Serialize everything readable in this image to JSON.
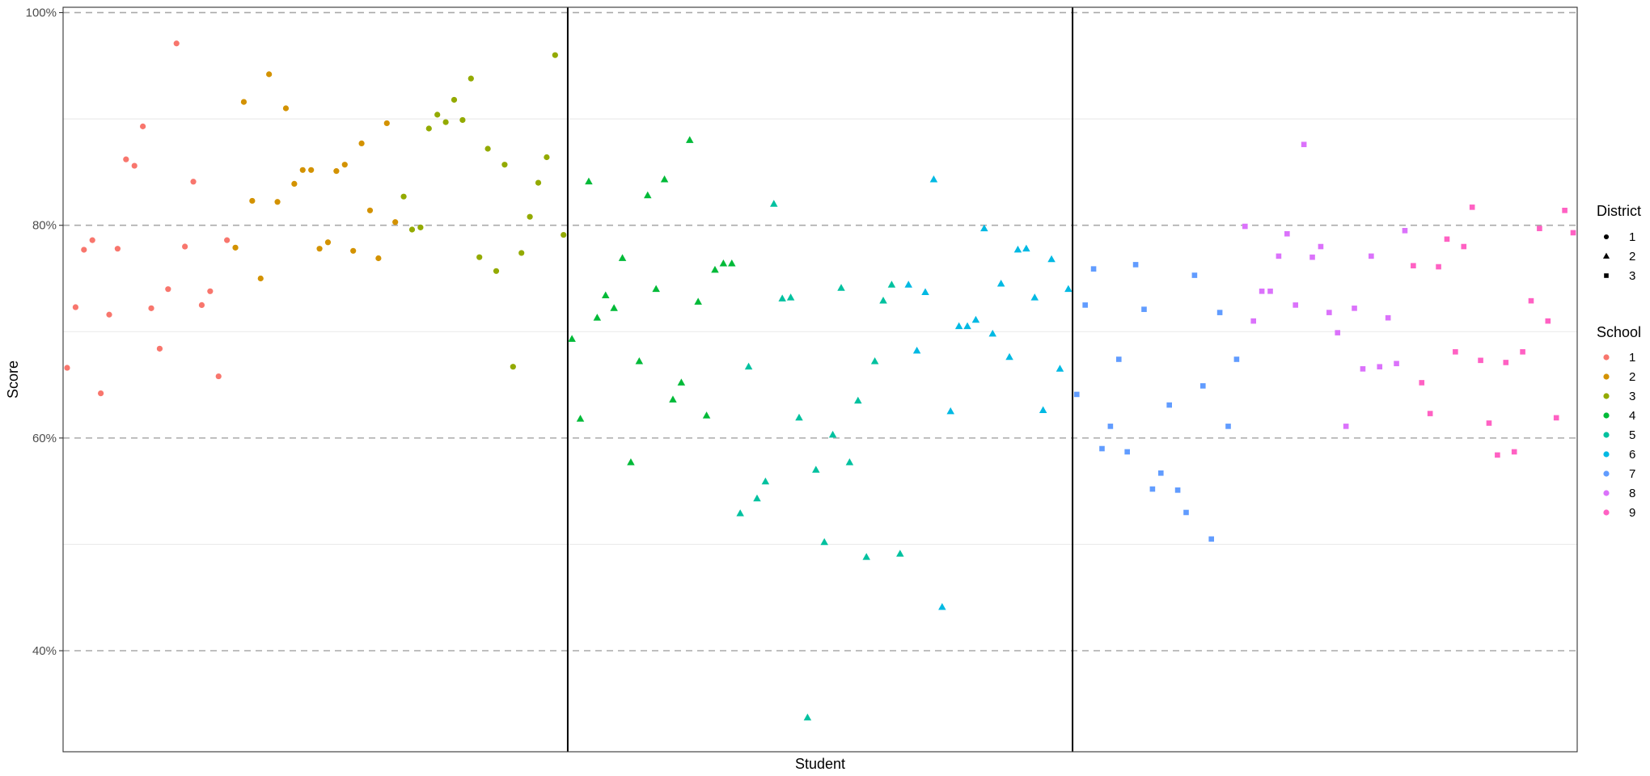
{
  "chart_data": {
    "type": "scatter",
    "xlabel": "Student",
    "ylabel": "Score",
    "ylim": [
      0.305,
      1.005
    ],
    "y_ticks": [
      {
        "value": 0.4,
        "label": "40%"
      },
      {
        "value": 0.6,
        "label": "60%"
      },
      {
        "value": 0.8,
        "label": "80%"
      },
      {
        "value": 1.0,
        "label": "100%"
      }
    ],
    "y_minor_ticks": [
      0.5,
      0.7,
      0.9
    ],
    "x_tick_labels": "none",
    "n_students": 180,
    "district_boundaries": [
      60.5,
      120.5
    ],
    "grid": {
      "major": "dashed",
      "minor": "solid-light"
    },
    "legend_placement": "right",
    "legends": {
      "district": {
        "title": "District",
        "entries": [
          {
            "label": "1",
            "shape": "circle"
          },
          {
            "label": "2",
            "shape": "triangle"
          },
          {
            "label": "3",
            "shape": "square"
          }
        ]
      },
      "school": {
        "title": "School",
        "entries": [
          {
            "label": "1",
            "color": "#F8766D"
          },
          {
            "label": "2",
            "color": "#D39200"
          },
          {
            "label": "3",
            "color": "#93AA00"
          },
          {
            "label": "4",
            "color": "#00BA38"
          },
          {
            "label": "5",
            "color": "#00C19F"
          },
          {
            "label": "6",
            "color": "#00B9E3"
          },
          {
            "label": "7",
            "color": "#619CFF"
          },
          {
            "label": "8",
            "color": "#DB72FB"
          },
          {
            "label": "9",
            "color": "#FF61C3"
          }
        ]
      }
    },
    "series": [
      {
        "school": "1",
        "district": "1",
        "x_start": 1,
        "values": [
          0.666,
          0.723,
          0.777,
          0.786,
          0.642,
          0.716,
          0.778,
          0.862,
          0.856,
          0.893,
          0.722,
          0.684,
          0.74,
          0.971,
          0.78,
          0.841,
          0.725,
          0.738,
          0.658,
          0.786
        ]
      },
      {
        "school": "2",
        "district": "1",
        "x_start": 21,
        "values": [
          0.779,
          0.916,
          0.823,
          0.75,
          0.942,
          0.822,
          0.91,
          0.839,
          0.852,
          0.852,
          0.778,
          0.784,
          0.851,
          0.857,
          0.776,
          0.877,
          0.814,
          0.769,
          0.896,
          0.803
        ]
      },
      {
        "school": "3",
        "district": "1",
        "x_start": 41,
        "values": [
          0.827,
          0.796,
          0.798,
          0.891,
          0.904,
          0.897,
          0.918,
          0.899,
          0.938,
          0.77,
          0.872,
          0.757,
          0.857,
          0.667,
          0.774,
          0.808,
          0.84,
          0.864,
          0.96,
          0.791
        ]
      },
      {
        "school": "4",
        "district": "2",
        "x_start": 61,
        "values": [
          0.693,
          0.618,
          0.841,
          0.713,
          0.734,
          0.722,
          0.769,
          0.577,
          0.672,
          0.828,
          0.74,
          0.843,
          0.636,
          0.652,
          0.88,
          0.728,
          0.621,
          0.758,
          0.764,
          0.764
        ]
      },
      {
        "school": "5",
        "district": "2",
        "x_start": 81,
        "values": [
          0.529,
          0.667,
          0.543,
          0.559,
          0.82,
          0.731,
          0.732,
          0.619,
          0.337,
          0.57,
          0.502,
          0.603,
          0.741,
          0.577,
          0.635,
          0.488,
          0.672,
          0.729,
          0.744,
          0.491
        ]
      },
      {
        "school": "6",
        "district": "2",
        "x_start": 101,
        "values": [
          0.744,
          0.682,
          0.737,
          0.843,
          0.441,
          0.625,
          0.705,
          0.705,
          0.711,
          0.797,
          0.698,
          0.745,
          0.676,
          0.777,
          0.778,
          0.732,
          0.626,
          0.768,
          0.665,
          0.74
        ]
      },
      {
        "school": "7",
        "district": "3",
        "x_start": 121,
        "values": [
          0.641,
          0.725,
          0.759,
          0.59,
          0.611,
          0.674,
          0.587,
          0.763,
          0.721,
          0.552,
          0.567,
          0.631,
          0.551,
          0.53,
          0.753,
          0.649,
          0.505,
          0.718,
          0.611,
          0.674
        ]
      },
      {
        "school": "8",
        "district": "3",
        "x_start": 141,
        "values": [
          0.799,
          0.71,
          0.738,
          0.738,
          0.771,
          0.792,
          0.725,
          0.876,
          0.77,
          0.78,
          0.718,
          0.699,
          0.611,
          0.722,
          0.665,
          0.771,
          0.667,
          0.713,
          0.67,
          0.795
        ]
      },
      {
        "school": "9",
        "district": "3",
        "x_start": 161,
        "values": [
          0.762,
          0.652,
          0.623,
          0.761,
          0.787,
          0.681,
          0.78,
          0.817,
          0.673,
          0.614,
          0.584,
          0.671,
          0.587,
          0.681,
          0.729,
          0.797,
          0.71,
          0.619,
          0.814,
          0.793
        ]
      }
    ]
  }
}
